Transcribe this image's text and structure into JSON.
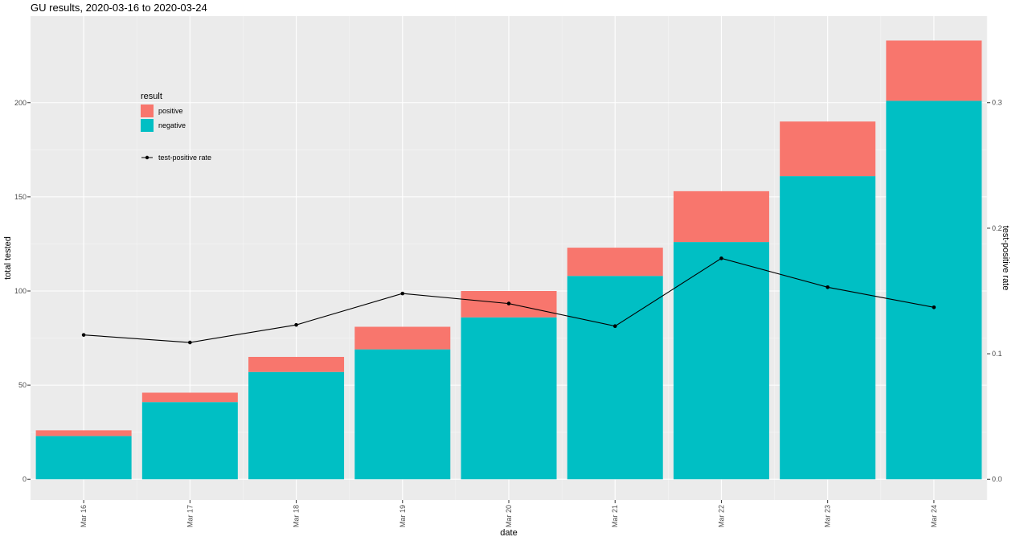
{
  "title": "GU results, 2020-03-16 to 2020-03-24",
  "chart_data": {
    "type": "bar",
    "stacked": true,
    "title": "GU results, 2020-03-16 to 2020-03-24",
    "xlabel": "date",
    "ylabel": "total tested",
    "y2label": "test-positive rate",
    "categories": [
      "Mar 16",
      "Mar 17",
      "Mar 18",
      "Mar 19",
      "Mar 20",
      "Mar 21",
      "Mar 22",
      "Mar 23",
      "Mar 24"
    ],
    "series": [
      {
        "name": "negative",
        "color": "#00BFC4",
        "values": [
          23,
          41,
          57,
          69,
          86,
          108,
          126,
          161,
          201
        ]
      },
      {
        "name": "positive",
        "color": "#F8766D",
        "values": [
          3,
          5,
          8,
          12,
          14,
          15,
          27,
          29,
          32
        ]
      }
    ],
    "line": {
      "name": "test-positive rate",
      "color": "#000000",
      "values": [
        0.115,
        0.109,
        0.123,
        0.148,
        0.14,
        0.122,
        0.176,
        0.153,
        0.137
      ]
    },
    "ylim": [
      -11,
      246
    ],
    "y_ticks": [
      0,
      50,
      100,
      150,
      200
    ],
    "y2_ticks": [
      0.0,
      0.1,
      0.2,
      0.3
    ],
    "y2_tick_labels": [
      "0.0",
      "0.1",
      "0.2",
      "0.3"
    ],
    "y2_scale": 666.67,
    "grid": true,
    "legend": {
      "title": "result",
      "position": "top-left",
      "items": [
        {
          "label": "positive",
          "color": "#F8766D"
        },
        {
          "label": "negative",
          "color": "#00BFC4"
        }
      ],
      "line_label": "test-positive rate"
    }
  }
}
